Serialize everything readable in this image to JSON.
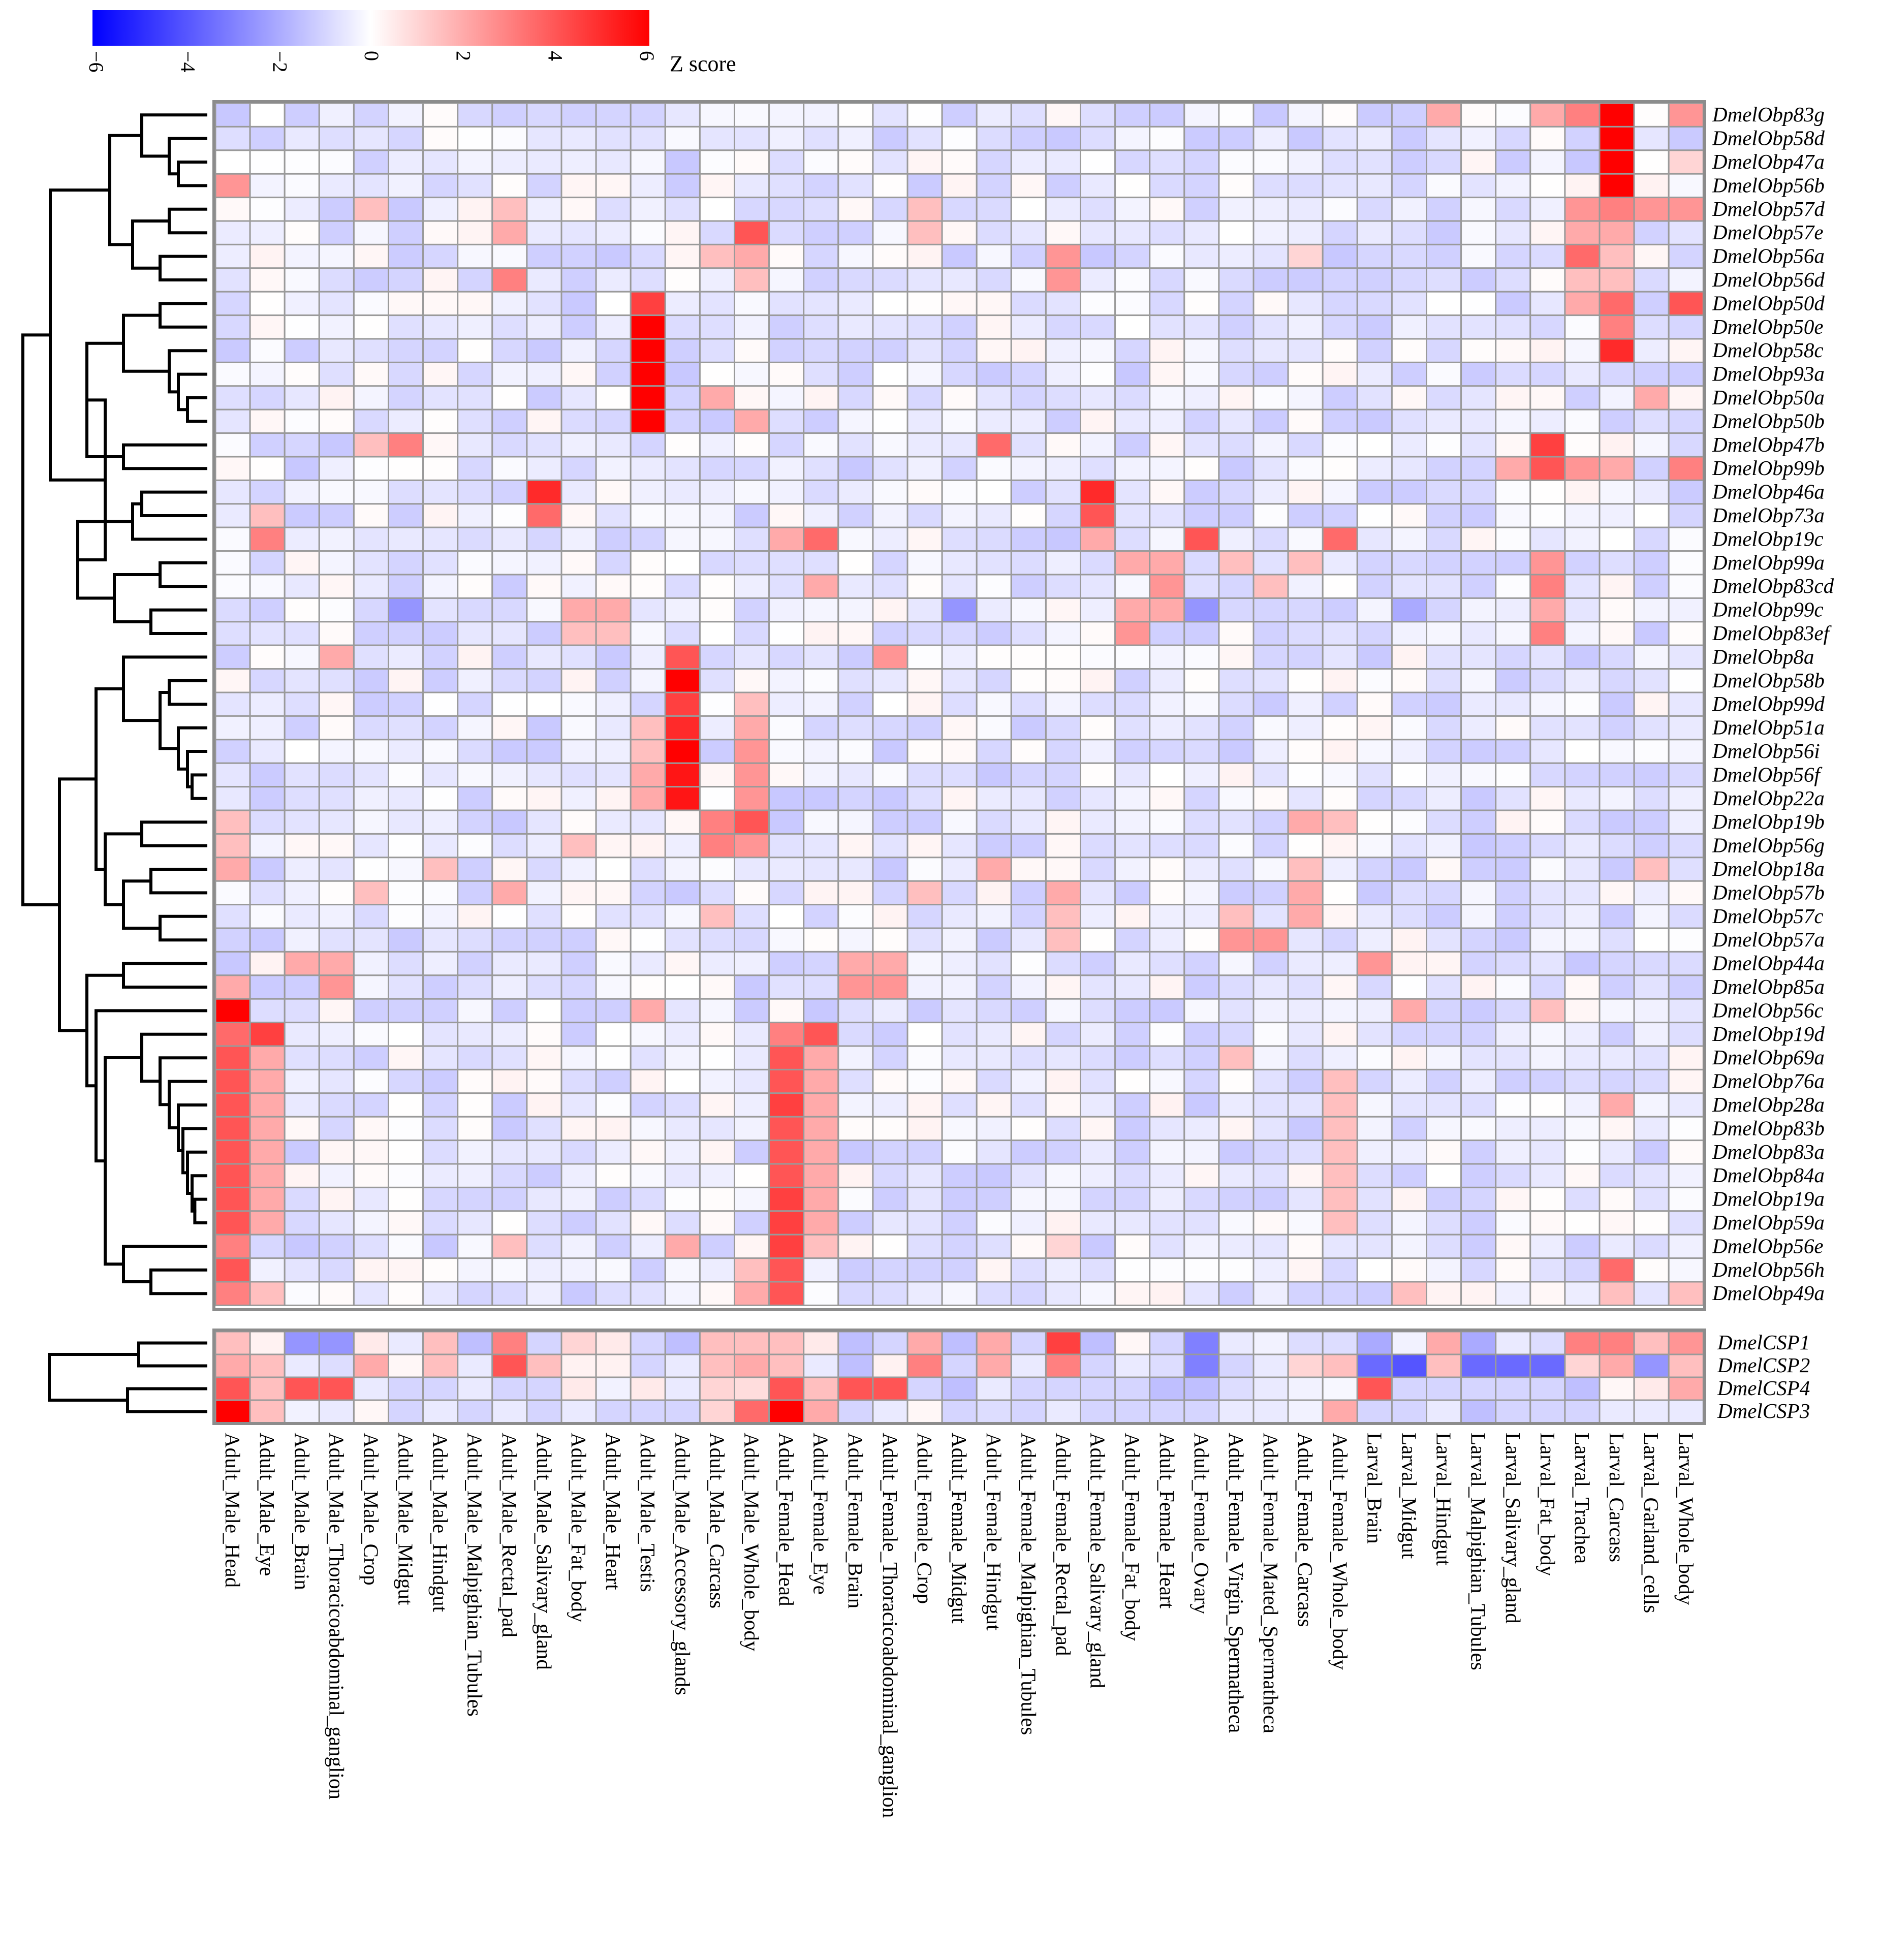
{
  "chart_data": {
    "type": "heatmap",
    "title": "",
    "legend": {
      "title": "Z score",
      "ticks": [
        "−6",
        "−4",
        "−2",
        "0",
        "2",
        "4",
        "6"
      ],
      "range": [
        -6,
        6
      ],
      "colors": {
        "low": "#0000ff",
        "mid": "#ffffff",
        "high": "#ff0000"
      }
    },
    "columns": [
      "Adult_Male_Head",
      "Adult_Male_Eye",
      "Adult_Male_Brain",
      "Adult_Male_Thoracicoabdominal_ganglion",
      "Adult_Male_Crop",
      "Adult_Male_Midgut",
      "Adult_Male_Hindgut",
      "Adult_Male_Malpighian_Tubules",
      "Adult_Male_Rectal_pad",
      "Adult_Male_Salivary_gland",
      "Adult_Male_Fat_body",
      "Adult_Male_Heart",
      "Adult_Male_Testis",
      "Adult_Male_Accessory_glands",
      "Adult_Male_Carcass",
      "Adult_Male_Whole_body",
      "Adult_Female_Head",
      "Adult_Female_Eye",
      "Adult_Female_Brain",
      "Adult_Female_Thoracicoabdominal_ganglion",
      "Adult_Female_Crop",
      "Adult_Female_Midgut",
      "Adult_Female_Hindgut",
      "Adult_Female_Malpighian_Tubules",
      "Adult_Female_Rectal_pad",
      "Adult_Female_Salivary_gland",
      "Adult_Female_Fat_body",
      "Adult_Female_Heart",
      "Adult_Female_Ovary",
      "Adult_Female_Virgin_Spermatheca",
      "Adult_Female_Mated_Spermatheca",
      "Adult_Female_Carcass",
      "Adult_Female_Whole_body",
      "Larval_Brain",
      "Larval_Midgut",
      "Larval_Hindgut",
      "Larval_Malpighian_Tubules",
      "Larval_Salivary_gland",
      "Larval_Fat_body",
      "Larval_Trachea",
      "Larval_Carcass",
      "Larval_Garland_cells",
      "Larval_Whole_body"
    ],
    "obp_rows": [
      "DmelObp83g",
      "DmelObp58d",
      "DmelObp47a",
      "DmelObp56b",
      "DmelObp57d",
      "DmelObp57e",
      "DmelObp56a",
      "DmelObp56d",
      "DmelObp50d",
      "DmelObp50e",
      "DmelObp58c",
      "DmelObp93a",
      "DmelObp50a",
      "DmelObp50b",
      "DmelObp47b",
      "DmelObp99b",
      "DmelObp46a",
      "DmelObp73a",
      "DmelObp19c",
      "DmelObp99a",
      "DmelObp83cd",
      "DmelObp99c",
      "DmelObp83ef",
      "DmelObp8a",
      "DmelObp58b",
      "DmelObp99d",
      "DmelObp51a",
      "DmelObp56i",
      "DmelObp56f",
      "DmelObp22a",
      "DmelObp19b",
      "DmelObp56g",
      "DmelObp18a",
      "DmelObp57b",
      "DmelObp57c",
      "DmelObp57a",
      "DmelObp44a",
      "DmelObp85a",
      "DmelObp56c",
      "DmelObp19d",
      "DmelObp69a",
      "DmelObp76a",
      "DmelObp28a",
      "DmelObp83b",
      "DmelObp83a",
      "DmelObp84a",
      "DmelObp19a",
      "DmelObp59a",
      "DmelObp56e",
      "DmelObp56h",
      "DmelObp49a"
    ],
    "csp_rows": [
      "DmelCSP1",
      "DmelCSP2",
      "DmelCSP4",
      "DmelCSP3"
    ],
    "baseline_z": -0.5,
    "obp_highlights": [
      {
        "row": "DmelObp83g",
        "cols": {
          "Larval_Carcass": 6,
          "Larval_Trachea": 3,
          "Larval_Whole_body": 2.5,
          "Larval_Hindgut": 2,
          "Larval_Fat_body": 2
        }
      },
      {
        "row": "DmelObp58d",
        "cols": {
          "Larval_Carcass": 6
        }
      },
      {
        "row": "DmelObp47a",
        "cols": {
          "Larval_Carcass": 6,
          "Larval_Whole_body": 1
        }
      },
      {
        "row": "DmelObp56b",
        "cols": {
          "Larval_Carcass": 6,
          "Adult_Male_Head": 2.5
        }
      },
      {
        "row": "DmelObp57d",
        "cols": {
          "Larval_Carcass": 3,
          "Larval_Trachea": 2.5,
          "Larval_Garland_cells": 2.5,
          "Larval_Whole_body": 2.5,
          "Adult_Female_Crop": 1.5,
          "Adult_Male_Crop": 1.5,
          "Adult_Male_Rectal_pad": 1.5
        }
      },
      {
        "row": "DmelObp57e",
        "cols": {
          "Adult_Male_Whole_body": 4,
          "Larval_Trachea": 2,
          "Larval_Carcass": 2,
          "Adult_Male_Rectal_pad": 2,
          "Adult_Female_Crop": 1.5
        }
      },
      {
        "row": "DmelObp56a",
        "cols": {
          "Larval_Trachea": 3.5,
          "Adult_Female_Rectal_pad": 2.5,
          "Adult_Male_Whole_body": 2,
          "Adult_Male_Carcass": 1.5,
          "Larval_Carcass": 1.5,
          "Adult_Female_Carcass": 1
        }
      },
      {
        "row": "DmelObp56d",
        "cols": {
          "Adult_Male_Rectal_pad": 3,
          "Adult_Female_Rectal_pad": 2.5,
          "Larval_Trachea": 1.5,
          "Larval_Carcass": 1.5,
          "Adult_Male_Whole_body": 1.5
        }
      },
      {
        "row": "DmelObp50d",
        "cols": {
          "Adult_Male_Testis": 4.5,
          "Larval_Whole_body": 4,
          "Larval_Carcass": 3.5,
          "Larval_Trachea": 2
        }
      },
      {
        "row": "DmelObp50e",
        "cols": {
          "Adult_Male_Testis": 6,
          "Larval_Carcass": 3
        }
      },
      {
        "row": "DmelObp58c",
        "cols": {
          "Adult_Male_Testis": 6,
          "Larval_Carcass": 5
        }
      },
      {
        "row": "DmelObp93a",
        "cols": {
          "Adult_Male_Testis": 6
        }
      },
      {
        "row": "DmelObp50a",
        "cols": {
          "Adult_Male_Testis": 6,
          "Adult_Male_Carcass": 2,
          "Larval_Garland_cells": 2
        }
      },
      {
        "row": "DmelObp50b",
        "cols": {
          "Adult_Male_Testis": 6,
          "Adult_Male_Whole_body": 2
        }
      },
      {
        "row": "DmelObp47b",
        "cols": {
          "Adult_Male_Midgut": 3,
          "Adult_Female_Hindgut": 3.5,
          "Larval_Fat_body": 4.5,
          "Adult_Male_Crop": 1.5
        }
      },
      {
        "row": "DmelObp99b",
        "cols": {
          "Larval_Fat_body": 4,
          "Larval_Whole_body": 3,
          "Larval_Trachea": 2.5,
          "Larval_Salivary_gland": 2,
          "Larval_Carcass": 2
        }
      },
      {
        "row": "DmelObp46a",
        "cols": {
          "Adult_Male_Salivary_gland": 5,
          "Adult_Female_Salivary_gland": 5
        }
      },
      {
        "row": "DmelObp73a",
        "cols": {
          "Adult_Male_Salivary_gland": 3.5,
          "Adult_Female_Salivary_gland": 4,
          "Adult_Male_Eye": 1.5
        }
      },
      {
        "row": "DmelObp19c",
        "cols": {
          "Adult_Female_Eye": 3.5,
          "Adult_Female_Ovary": 4,
          "Adult_Female_Whole_body": 3.5,
          "Adult_Male_Eye": 3,
          "Adult_Female_Head": 2,
          "Adult_Female_Salivary_gland": 2
        }
      },
      {
        "row": "DmelObp99a",
        "cols": {
          "Adult_Female_Fat_body": 2,
          "Adult_Female_Heart": 2,
          "Larval_Fat_body": 2.5,
          "Adult_Female_Virgin_Spermatheca": 1.5,
          "Adult_Female_Carcass": 1.5
        }
      },
      {
        "row": "DmelObp83cd",
        "cols": {
          "Adult_Female_Heart": 2.5,
          "Larval_Fat_body": 3,
          "Adult_Female_Eye": 2,
          "Adult_Female_Mated_Spermatheca": 1.5
        }
      },
      {
        "row": "DmelObp99c",
        "cols": {
          "Adult_Male_Fat_body": 2,
          "Adult_Male_Heart": 2,
          "Adult_Female_Fat_body": 2,
          "Adult_Female_Heart": 2,
          "Larval_Fat_body": 2,
          "Adult_Male_Midgut": -2.5,
          "Adult_Female_Midgut": -2.5,
          "Larval_Midgut": -2,
          "Adult_Female_Ovary": -2.5
        }
      },
      {
        "row": "DmelObp83ef",
        "cols": {
          "Adult_Female_Fat_body": 2.5,
          "Larval_Fat_body": 3,
          "Adult_Male_Fat_body": 1.5,
          "Adult_Male_Heart": 1.5
        }
      },
      {
        "row": "DmelObp8a",
        "cols": {
          "Adult_Male_Accessory_glands": 4,
          "Adult_Female_Thoracicoabdominal_ganglion": 2.5,
          "Adult_Male_Thoracicoabdominal_ganglion": 2
        }
      },
      {
        "row": "DmelObp58b",
        "cols": {
          "Adult_Male_Accessory_glands": 6
        }
      },
      {
        "row": "DmelObp99d",
        "cols": {
          "Adult_Male_Accessory_glands": 4.5,
          "Adult_Male_Whole_body": 1.5
        }
      },
      {
        "row": "DmelObp51a",
        "cols": {
          "Adult_Male_Accessory_glands": 5,
          "Adult_Male_Whole_body": 2,
          "Adult_Male_Testis": 1.5
        }
      },
      {
        "row": "DmelObp56i",
        "cols": {
          "Adult_Male_Accessory_glands": 6,
          "Adult_Male_Whole_body": 2.5,
          "Adult_Male_Testis": 1.5
        }
      },
      {
        "row": "DmelObp56f",
        "cols": {
          "Adult_Male_Accessory_glands": 5.5,
          "Adult_Male_Whole_body": 2.5,
          "Adult_Male_Testis": 2
        }
      },
      {
        "row": "DmelObp22a",
        "cols": {
          "Adult_Male_Accessory_glands": 5.5,
          "Adult_Male_Whole_body": 2.5,
          "Adult_Male_Testis": 2
        }
      },
      {
        "row": "DmelObp19b",
        "cols": {
          "Adult_Male_Carcass": 3,
          "Adult_Male_Whole_body": 4,
          "Adult_Female_Carcass": 2,
          "Adult_Female_Whole_body": 1.5,
          "Adult_Male_Head": 1.5
        }
      },
      {
        "row": "DmelObp56g",
        "cols": {
          "Adult_Male_Carcass": 3,
          "Adult_Male_Whole_body": 2.5,
          "Adult_Male_Fat_body": 1.5,
          "Adult_Male_Head": 1.5
        }
      },
      {
        "row": "DmelObp18a",
        "cols": {
          "Adult_Male_Head": 2,
          "Adult_Female_Hindgut": 2,
          "Adult_Male_Hindgut": 1.5,
          "Adult_Female_Carcass": 1.5,
          "Larval_Garland_cells": 1.5
        }
      },
      {
        "row": "DmelObp57b",
        "cols": {
          "Adult_Male_Rectal_pad": 2,
          "Adult_Female_Rectal_pad": 2,
          "Adult_Male_Crop": 1.5,
          "Adult_Female_Crop": 1.5,
          "Adult_Female_Carcass": 2
        }
      },
      {
        "row": "DmelObp57c",
        "cols": {
          "Adult_Female_Carcass": 2,
          "Adult_Female_Rectal_pad": 1.5,
          "Adult_Male_Carcass": 1.5,
          "Adult_Female_Virgin_Spermatheca": 1.5
        }
      },
      {
        "row": "DmelObp57a",
        "cols": {
          "Adult_Female_Virgin_Spermatheca": 2.5,
          "Adult_Female_Mated_Spermatheca": 2.5,
          "Adult_Female_Rectal_pad": 1.5
        }
      },
      {
        "row": "DmelObp44a",
        "cols": {
          "Adult_Male_Brain": 2,
          "Adult_Male_Thoracicoabdominal_ganglion": 2,
          "Adult_Female_Brain": 2,
          "Adult_Female_Thoracicoabdominal_ganglion": 2,
          "Larval_Brain": 2.5
        }
      },
      {
        "row": "DmelObp85a",
        "cols": {
          "Adult_Male_Head": 2,
          "Adult_Male_Thoracicoabdominal_ganglion": 2.5,
          "Adult_Female_Brain": 2.5,
          "Adult_Female_Thoracicoabdominal_ganglion": 2.5
        }
      },
      {
        "row": "DmelObp56c",
        "cols": {
          "Adult_Male_Head": 6,
          "Adult_Male_Testis": 2,
          "Larval_Midgut": 2,
          "Larval_Fat_body": 1.5
        }
      },
      {
        "row": "DmelObp19d",
        "cols": {
          "Adult_Male_Head": 3.5,
          "Adult_Male_Eye": 4.5,
          "Adult_Female_Head": 3,
          "Adult_Female_Eye": 4
        }
      },
      {
        "row": "DmelObp69a",
        "cols": {
          "Adult_Male_Head": 4,
          "Adult_Male_Eye": 2,
          "Adult_Female_Head": 4,
          "Adult_Female_Eye": 2,
          "Adult_Female_Virgin_Spermatheca": 1.5
        }
      },
      {
        "row": "DmelObp76a",
        "cols": {
          "Adult_Male_Head": 4,
          "Adult_Male_Eye": 2,
          "Adult_Female_Head": 4,
          "Adult_Female_Eye": 2,
          "Adult_Female_Whole_body": 1.5
        }
      },
      {
        "row": "DmelObp28a",
        "cols": {
          "Adult_Male_Head": 4,
          "Adult_Male_Eye": 2,
          "Adult_Female_Head": 4.5,
          "Adult_Female_Eye": 2,
          "Larval_Carcass": 2,
          "Adult_Female_Whole_body": 1.5
        }
      },
      {
        "row": "DmelObp83b",
        "cols": {
          "Adult_Male_Head": 4,
          "Adult_Male_Eye": 2,
          "Adult_Female_Head": 4,
          "Adult_Female_Eye": 2,
          "Adult_Female_Whole_body": 1.5
        }
      },
      {
        "row": "DmelObp83a",
        "cols": {
          "Adult_Male_Head": 4,
          "Adult_Male_Eye": 2,
          "Adult_Female_Head": 4,
          "Adult_Female_Eye": 2,
          "Adult_Female_Whole_body": 1.5
        }
      },
      {
        "row": "DmelObp84a",
        "cols": {
          "Adult_Male_Head": 4,
          "Adult_Male_Eye": 2,
          "Adult_Female_Head": 4,
          "Adult_Female_Eye": 2,
          "Adult_Female_Whole_body": 1.5
        }
      },
      {
        "row": "DmelObp19a",
        "cols": {
          "Adult_Male_Head": 4,
          "Adult_Male_Eye": 2,
          "Adult_Female_Head": 4.5,
          "Adult_Female_Eye": 2,
          "Adult_Female_Whole_body": 1.5
        }
      },
      {
        "row": "DmelObp59a",
        "cols": {
          "Adult_Male_Head": 4,
          "Adult_Male_Eye": 2,
          "Adult_Female_Head": 4.5,
          "Adult_Female_Eye": 2,
          "Adult_Female_Whole_body": 1.5
        }
      },
      {
        "row": "DmelObp56e",
        "cols": {
          "Adult_Male_Head": 3,
          "Adult_Female_Head": 4.5,
          "Adult_Male_Accessory_glands": 2,
          "Adult_Male_Rectal_pad": 1.5,
          "Adult_Female_Eye": 1.5,
          "Adult_Female_Rectal_pad": 1
        }
      },
      {
        "row": "DmelObp56h",
        "cols": {
          "Adult_Male_Head": 4,
          "Adult_Female_Head": 4,
          "Adult_Male_Whole_body": 1.5,
          "Larval_Carcass": 3.5
        }
      },
      {
        "row": "DmelObp49a",
        "cols": {
          "Adult_Male_Head": 3,
          "Adult_Male_Eye": 1.5,
          "Adult_Female_Head": 4,
          "Adult_Male_Whole_body": 2,
          "Larval_Midgut": 1.5,
          "Larval_Carcass": 1.5,
          "Larval_Whole_body": 1.5
        }
      }
    ],
    "csp_values": [
      [
        1.5,
        0.3,
        -2.5,
        -2.5,
        0.5,
        -0.5,
        1.5,
        -1.5,
        3,
        -1,
        1,
        0.5,
        -1,
        -1.5,
        1.5,
        1.5,
        1.5,
        0.5,
        -1.5,
        -1,
        2,
        -1.5,
        2,
        -1,
        4.5,
        -1.5,
        0.2,
        -1,
        -3,
        -0.5,
        -0.3,
        -0.8,
        -0.8,
        -2,
        -0.3,
        2,
        -2,
        -0.5,
        -0.8,
        3,
        3,
        1.5,
        2.5
      ],
      [
        2,
        1.5,
        -0.5,
        -0.8,
        2,
        0.2,
        1.5,
        -0.5,
        4,
        1.5,
        0.3,
        0.3,
        -1,
        -0.5,
        1.5,
        2,
        1.5,
        -0.5,
        -1.5,
        0.3,
        3,
        -1,
        2,
        -0.5,
        3,
        -1,
        -0.5,
        -0.8,
        -3,
        -1,
        -0.5,
        1,
        1.5,
        -3.5,
        -4,
        1.5,
        -3.5,
        -3.5,
        -3.5,
        1,
        2,
        -2.5,
        1.5
      ],
      [
        4,
        1.5,
        4,
        4,
        -0.5,
        -1,
        -1,
        -0.5,
        -1,
        -1,
        0.5,
        -0.3,
        0.5,
        -0.5,
        1,
        0.8,
        4,
        1.5,
        4,
        4,
        -1,
        -1.5,
        -0.5,
        -1,
        -1,
        -1,
        -1,
        -1.5,
        -1.5,
        -0.8,
        -0.5,
        -0.3,
        -0.2,
        4,
        -1,
        -1,
        -1,
        -1,
        -1,
        -1.5,
        0.2,
        0.5,
        2
      ],
      [
        6,
        1.5,
        -0.3,
        -0.5,
        0.2,
        -1,
        -0.5,
        -1,
        -0.5,
        -1,
        -0.5,
        -1,
        -1,
        -1,
        1,
        3.5,
        6,
        2,
        -1,
        -0.5,
        0.2,
        -1,
        -0.8,
        -1,
        -0.5,
        -1,
        -1,
        -1,
        -1,
        -0.5,
        -0.5,
        -0.3,
        2,
        -1,
        -1,
        -0.5,
        -1.5,
        -1,
        -1,
        -1,
        -0.5,
        -0.5,
        -0.5
      ]
    ]
  }
}
